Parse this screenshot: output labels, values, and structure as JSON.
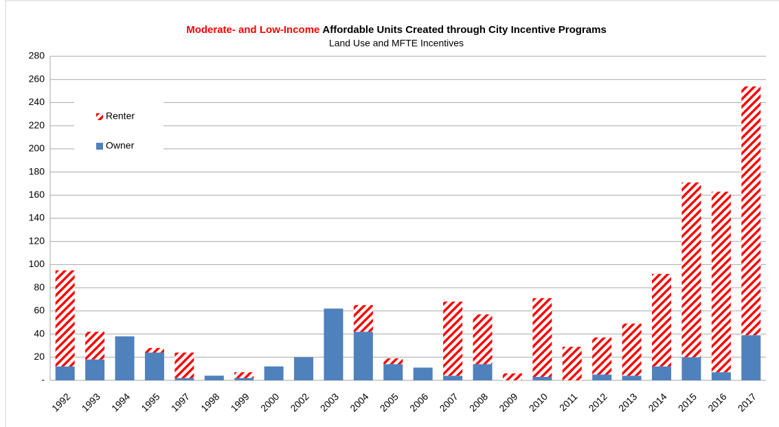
{
  "chart_data": {
    "type": "stacked_bar",
    "title": [
      "Moderate- and Low-Income",
      "Affordable Units Created through City Incentive Programs"
    ],
    "title_colors": [
      "#ff0000",
      "#000000"
    ],
    "subtitle": "Land Use and MFTE Incentives",
    "categories": [
      "1992",
      "1993",
      "1994",
      "1995",
      "1997",
      "1998",
      "1999",
      "2000",
      "2002",
      "2003",
      "2004",
      "2005",
      "2006",
      "2007",
      "2008",
      "2009",
      "2010",
      "2011",
      "2012",
      "2013",
      "2014",
      "2015",
      "2016",
      "2017"
    ],
    "series": [
      {
        "name": "Owner",
        "color": "#4f81bd",
        "hatch": false,
        "values": [
          12,
          18,
          38,
          24,
          2,
          4,
          2,
          12,
          20,
          62,
          42,
          14,
          11,
          4,
          14,
          0,
          3,
          0,
          5,
          4,
          12,
          20,
          7,
          39
        ]
      },
      {
        "name": "Renter",
        "color": "#ff0000",
        "hatch": true,
        "values": [
          83,
          24,
          0,
          4,
          22,
          0,
          5,
          0,
          0,
          0,
          23,
          5,
          0,
          64,
          43,
          6,
          68,
          29,
          32,
          45,
          80,
          151,
          156,
          215
        ]
      }
    ],
    "ylim": [
      0,
      280
    ],
    "yticks": [
      {
        "value": 0,
        "label": "-"
      },
      20,
      40,
      60,
      80,
      100,
      120,
      140,
      160,
      180,
      200,
      220,
      240,
      260,
      280
    ],
    "grid": true,
    "legend": "upper left"
  }
}
